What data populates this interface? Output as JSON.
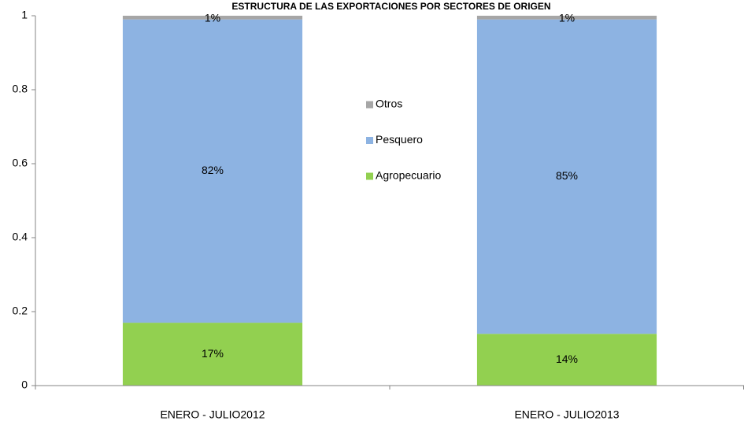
{
  "chart_data": {
    "type": "stacked_bar",
    "title": "ESTRUCTURA DE LAS EXPORTACIONES POR SECTORES DE ORIGEN",
    "categories": [
      "ENERO - JULIO2012",
      "ENERO - JULIO2013"
    ],
    "series": [
      {
        "name": "Agropecuario",
        "color": "#92d050",
        "values": [
          0.17,
          0.14
        ],
        "value_labels": [
          "17%",
          "14%"
        ]
      },
      {
        "name": "Pesquero",
        "color": "#8db3e2",
        "values": [
          0.82,
          0.85
        ],
        "value_labels": [
          "82%",
          "85%"
        ]
      },
      {
        "name": "Otros",
        "color": "#a6a6a6",
        "values": [
          0.01,
          0.01
        ],
        "value_labels": [
          "1%",
          "1%"
        ]
      }
    ],
    "ylim": [
      0,
      1
    ],
    "yticks": [
      0,
      0.2,
      0.4,
      0.6,
      0.8,
      1
    ],
    "grid": false,
    "legend": "center"
  }
}
